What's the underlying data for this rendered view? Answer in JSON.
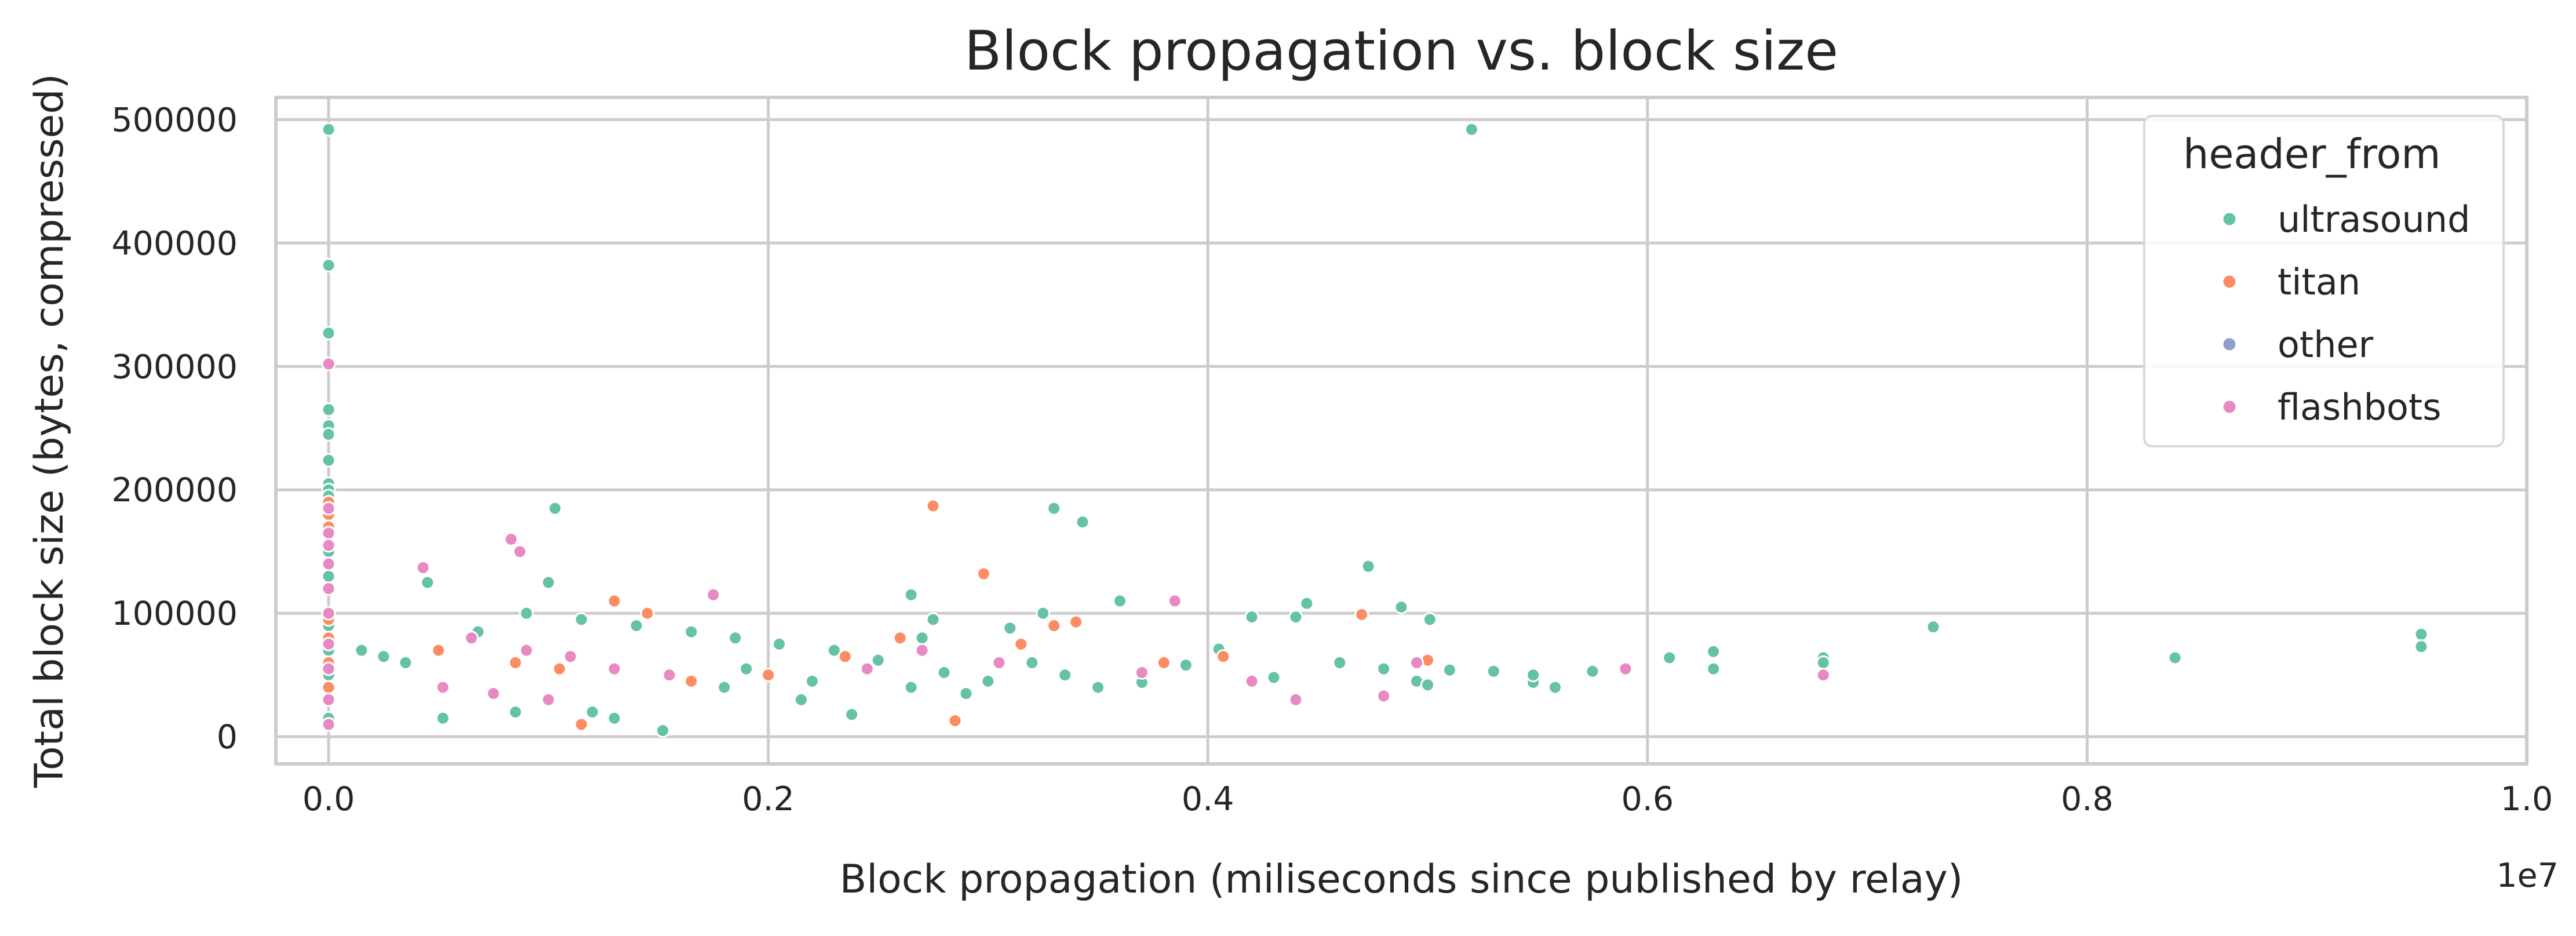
{
  "chart_data": {
    "type": "scatter",
    "title": "Block propagation vs. block size",
    "xlabel": "Block propagation (miliseconds since published by relay)",
    "ylabel": "Total block size (bytes, compressed)",
    "x_offset_label": "1e7",
    "x_scale": 10000000,
    "xlim": [
      -240000,
      10000000
    ],
    "ylim": [
      -22000,
      518000
    ],
    "x_ticks": [
      0,
      2000000,
      4000000,
      6000000,
      8000000,
      10000000
    ],
    "x_tick_labels": [
      "0.0",
      "0.2",
      "0.4",
      "0.6",
      "0.8",
      "1.0"
    ],
    "y_ticks": [
      0,
      100000,
      200000,
      300000,
      400000,
      500000
    ],
    "y_tick_labels": [
      "0",
      "100000",
      "200000",
      "300000",
      "400000",
      "500000"
    ],
    "grid": true,
    "legend_placement": "top-right",
    "legend_title": "header_from",
    "series": [
      {
        "name": "ultrasound",
        "color": "#66c2a5",
        "points": [
          [
            0,
            492000
          ],
          [
            0,
            382000
          ],
          [
            0,
            327000
          ],
          [
            0,
            265000
          ],
          [
            0,
            252000
          ],
          [
            0,
            245000
          ],
          [
            0,
            224000
          ],
          [
            0,
            205000
          ],
          [
            0,
            200000
          ],
          [
            0,
            195000
          ],
          [
            0,
            188000
          ],
          [
            0,
            178000
          ],
          [
            0,
            170000
          ],
          [
            0,
            150000
          ],
          [
            0,
            130000
          ],
          [
            0,
            90000
          ],
          [
            0,
            70000
          ],
          [
            0,
            50000
          ],
          [
            0,
            30000
          ],
          [
            0,
            15000
          ],
          [
            5200000,
            492000
          ],
          [
            1030000,
            185000
          ],
          [
            3300000,
            185000
          ],
          [
            3430000,
            174000
          ],
          [
            4730000,
            138000
          ],
          [
            450000,
            125000
          ],
          [
            1000000,
            125000
          ],
          [
            2650000,
            115000
          ],
          [
            3600000,
            110000
          ],
          [
            4450000,
            108000
          ],
          [
            4880000,
            105000
          ],
          [
            5010000,
            95000
          ],
          [
            7300000,
            89000
          ],
          [
            9520000,
            83000
          ],
          [
            9520000,
            73000
          ],
          [
            8400000,
            64000
          ],
          [
            6800000,
            64000
          ],
          [
            6800000,
            60000
          ],
          [
            6300000,
            69000
          ],
          [
            6300000,
            55000
          ],
          [
            6100000,
            64000
          ],
          [
            5750000,
            53000
          ],
          [
            5580000,
            40000
          ],
          [
            5480000,
            44000
          ],
          [
            5480000,
            50000
          ],
          [
            5300000,
            53000
          ],
          [
            5100000,
            54000
          ],
          [
            4400000,
            97000
          ],
          [
            4200000,
            97000
          ],
          [
            4050000,
            71000
          ],
          [
            3900000,
            58000
          ],
          [
            3700000,
            44000
          ],
          [
            3500000,
            40000
          ],
          [
            3350000,
            50000
          ],
          [
            3200000,
            60000
          ],
          [
            3000000,
            45000
          ],
          [
            2900000,
            35000
          ],
          [
            2800000,
            52000
          ],
          [
            2650000,
            40000
          ],
          [
            2500000,
            62000
          ],
          [
            2380000,
            18000
          ],
          [
            2200000,
            45000
          ],
          [
            2150000,
            30000
          ],
          [
            1900000,
            55000
          ],
          [
            1800000,
            40000
          ],
          [
            1520000,
            5000
          ],
          [
            1300000,
            15000
          ],
          [
            1200000,
            20000
          ],
          [
            850000,
            20000
          ],
          [
            520000,
            15000
          ],
          [
            680000,
            85000
          ],
          [
            900000,
            100000
          ],
          [
            1150000,
            95000
          ],
          [
            1400000,
            90000
          ],
          [
            1650000,
            85000
          ],
          [
            1850000,
            80000
          ],
          [
            2050000,
            75000
          ],
          [
            2300000,
            70000
          ],
          [
            2750000,
            95000
          ],
          [
            3100000,
            88000
          ],
          [
            150000,
            70000
          ],
          [
            250000,
            65000
          ],
          [
            350000,
            60000
          ],
          [
            4600000,
            60000
          ],
          [
            4950000,
            45000
          ],
          [
            3250000,
            100000
          ],
          [
            2700000,
            80000
          ],
          [
            4800000,
            55000
          ],
          [
            5000000,
            42000
          ],
          [
            4300000,
            48000
          ]
        ]
      },
      {
        "name": "titan",
        "color": "#fc8d62",
        "points": [
          [
            0,
            190000
          ],
          [
            0,
            180000
          ],
          [
            0,
            170000
          ],
          [
            0,
            120000
          ],
          [
            0,
            95000
          ],
          [
            0,
            80000
          ],
          [
            0,
            60000
          ],
          [
            0,
            40000
          ],
          [
            2750000,
            187000
          ],
          [
            2980000,
            132000
          ],
          [
            3300000,
            90000
          ],
          [
            3400000,
            93000
          ],
          [
            4700000,
            99000
          ],
          [
            4070000,
            65000
          ],
          [
            5000000,
            62000
          ],
          [
            1300000,
            110000
          ],
          [
            1450000,
            100000
          ],
          [
            1150000,
            10000
          ],
          [
            2850000,
            13000
          ],
          [
            500000,
            70000
          ],
          [
            850000,
            60000
          ],
          [
            1050000,
            55000
          ],
          [
            1650000,
            45000
          ],
          [
            2000000,
            50000
          ],
          [
            2350000,
            65000
          ],
          [
            2600000,
            80000
          ],
          [
            3150000,
            75000
          ],
          [
            3800000,
            60000
          ]
        ]
      },
      {
        "name": "other",
        "color": "#8da0cb",
        "points": []
      },
      {
        "name": "flashbots",
        "color": "#e78ac3",
        "points": [
          [
            0,
            302000
          ],
          [
            0,
            185000
          ],
          [
            0,
            165000
          ],
          [
            0,
            155000
          ],
          [
            0,
            140000
          ],
          [
            0,
            120000
          ],
          [
            0,
            100000
          ],
          [
            0,
            75000
          ],
          [
            0,
            55000
          ],
          [
            0,
            30000
          ],
          [
            0,
            10000
          ],
          [
            830000,
            160000
          ],
          [
            870000,
            150000
          ],
          [
            1750000,
            115000
          ],
          [
            3850000,
            110000
          ],
          [
            430000,
            137000
          ],
          [
            4950000,
            60000
          ],
          [
            5900000,
            55000
          ],
          [
            6800000,
            50000
          ],
          [
            4400000,
            30000
          ],
          [
            4800000,
            33000
          ],
          [
            650000,
            80000
          ],
          [
            900000,
            70000
          ],
          [
            1100000,
            65000
          ],
          [
            1300000,
            55000
          ],
          [
            1550000,
            50000
          ],
          [
            2700000,
            70000
          ],
          [
            2450000,
            55000
          ],
          [
            3050000,
            60000
          ],
          [
            3700000,
            52000
          ],
          [
            4200000,
            45000
          ],
          [
            520000,
            40000
          ],
          [
            750000,
            35000
          ],
          [
            1000000,
            30000
          ]
        ]
      }
    ]
  }
}
